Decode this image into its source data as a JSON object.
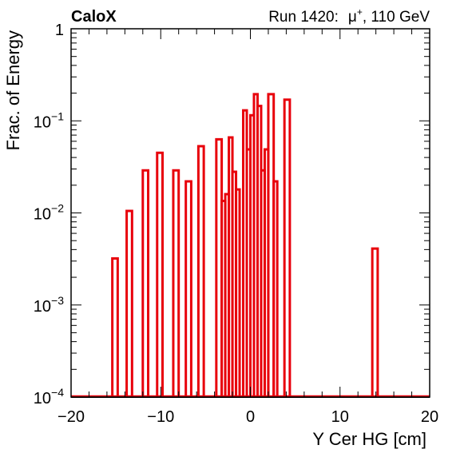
{
  "header": {
    "experiment": "CaloX",
    "run_info": "Run 1420:",
    "beam_particle": "μ",
    "beam_charge": "+",
    "beam_energy": ", 110 GeV"
  },
  "chart_data": {
    "type": "histogram",
    "xlabel": "Y Cer HG [cm]",
    "ylabel": "Frac. of Energy",
    "xlim": [
      -20,
      20
    ],
    "ylim": [
      0.0001,
      1
    ],
    "yscale": "log",
    "x_ticks": [
      {
        "value": -20,
        "label": "−20"
      },
      {
        "value": -10,
        "label": "−10"
      },
      {
        "value": 0,
        "label": "0"
      },
      {
        "value": 10,
        "label": "10"
      },
      {
        "value": 20,
        "label": "20"
      }
    ],
    "y_ticks": [
      {
        "value": 1,
        "base": "1",
        "exp": ""
      },
      {
        "value": 0.1,
        "base": "10",
        "exp": "−1"
      },
      {
        "value": 0.01,
        "base": "10",
        "exp": "−2"
      },
      {
        "value": 0.001,
        "base": "10",
        "exp": "−3"
      },
      {
        "value": 0.0001,
        "base": "10",
        "exp": "−4"
      }
    ],
    "grid": false,
    "color": "#e8000b",
    "bins": [
      {
        "x0": -15.4,
        "x1": -14.8,
        "y": 0.0032
      },
      {
        "x0": -13.8,
        "x1": -13.2,
        "y": 0.0105
      },
      {
        "x0": -12.0,
        "x1": -11.4,
        "y": 0.029
      },
      {
        "x0": -10.4,
        "x1": -9.8,
        "y": 0.045
      },
      {
        "x0": -8.6,
        "x1": -8.0,
        "y": 0.029
      },
      {
        "x0": -7.2,
        "x1": -6.6,
        "y": 0.022
      },
      {
        "x0": -5.8,
        "x1": -5.2,
        "y": 0.053
      },
      {
        "x0": -3.8,
        "x1": -3.2,
        "y": 0.063
      },
      {
        "x0": -3.2,
        "x1": -2.8,
        "y": 0.0135
      },
      {
        "x0": -2.8,
        "x1": -2.4,
        "y": 0.016
      },
      {
        "x0": -2.4,
        "x1": -2.0,
        "y": 0.066
      },
      {
        "x0": -2.0,
        "x1": -1.6,
        "y": 0.028
      },
      {
        "x0": -1.6,
        "x1": -1.2,
        "y": 0.018
      },
      {
        "x0": -0.8,
        "x1": -0.4,
        "y": 0.13
      },
      {
        "x0": -0.4,
        "x1": 0.0,
        "y": 0.049
      },
      {
        "x0": 0.0,
        "x1": 0.4,
        "y": 0.115
      },
      {
        "x0": 0.4,
        "x1": 0.8,
        "y": 0.195
      },
      {
        "x0": 0.8,
        "x1": 1.2,
        "y": 0.145
      },
      {
        "x0": 1.2,
        "x1": 1.6,
        "y": 0.029
      },
      {
        "x0": 1.6,
        "x1": 2.0,
        "y": 0.049
      },
      {
        "x0": 2.0,
        "x1": 2.6,
        "y": 0.195
      },
      {
        "x0": 2.6,
        "x1": 3.0,
        "y": 0.022
      },
      {
        "x0": 3.8,
        "x1": 4.4,
        "y": 0.17
      },
      {
        "x0": 13.6,
        "x1": 14.2,
        "y": 0.0041
      }
    ]
  }
}
